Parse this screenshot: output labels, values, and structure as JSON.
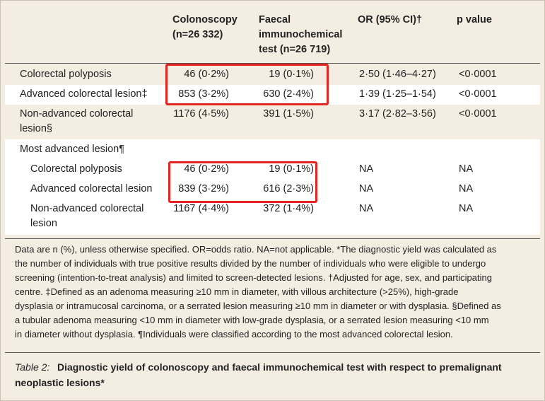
{
  "header": {
    "columns": [
      [
        "Colonoscopy",
        "(n=26 332)"
      ],
      [
        "Faecal",
        "immunochemical",
        "test (n=26 719)"
      ],
      [
        "OR (95% CI)†"
      ],
      [
        "p value"
      ]
    ]
  },
  "table": {
    "rows": [
      [
        "Colorectal polyposis",
        "46 (0·2%)",
        "19 (0·1%)",
        "2·50 (1·46–4·27)",
        "<0·0001"
      ],
      [
        "Advanced colorectal lesion‡",
        "853 (3·2%)",
        "630 (2·4%)",
        "1·39 (1·25–1·54)",
        "<0·0001"
      ],
      [
        [
          "Non-advanced colorectal",
          "lesion§"
        ],
        "1176 (4·5%)",
        "391 (1·5%)",
        "3·17 (2·82–3·56)",
        "<0·0001"
      ]
    ],
    "section_label": "Most advanced lesion¶",
    "subrows": [
      [
        "Colorectal polyposis",
        "46 (0·2%)",
        "19 (0·1%)",
        "NA",
        "NA"
      ],
      [
        "Advanced colorectal lesion",
        "839 (3·2%)",
        "616 (2·3%)",
        "NA",
        "NA"
      ],
      [
        [
          "Non-advanced colorectal",
          "lesion"
        ],
        "1167 (4·4%)",
        "372 (1·4%)",
        "NA",
        "NA"
      ]
    ]
  },
  "footnote": [
    "Data are n (%), unless otherwise specified. OR=odds ratio. NA=not applicable. *The diagnostic yield was calculated as",
    "the number of individuals with true positive results divided by the number of individuals who were eligible to undergo",
    "screening (intention-to-treat analysis) and limited to screen-detected lesions. †Adjusted for age, sex, and participating",
    "centre. ‡Defined as an adenoma measuring ≥10 mm in diameter, with villous architecture (>25%), high-grade",
    "dysplasia or intramucosal carcinoma, or a serrated lesion measuring ≥10 mm in diameter or with dysplasia. §Defined as",
    "a tubular adenoma measuring <10 mm in diameter with low-grade dysplasia, or a serrated lesion measuring <10 mm",
    "in diameter without dysplasia. ¶Individuals were classified according to the most advanced colorectal lesion."
  ],
  "caption": {
    "label": "Table 2:",
    "text": [
      "Diagnostic yield of colonoscopy and faecal immunochemical test with respect to premalignant",
      "neoplastic lesions*"
    ]
  }
}
